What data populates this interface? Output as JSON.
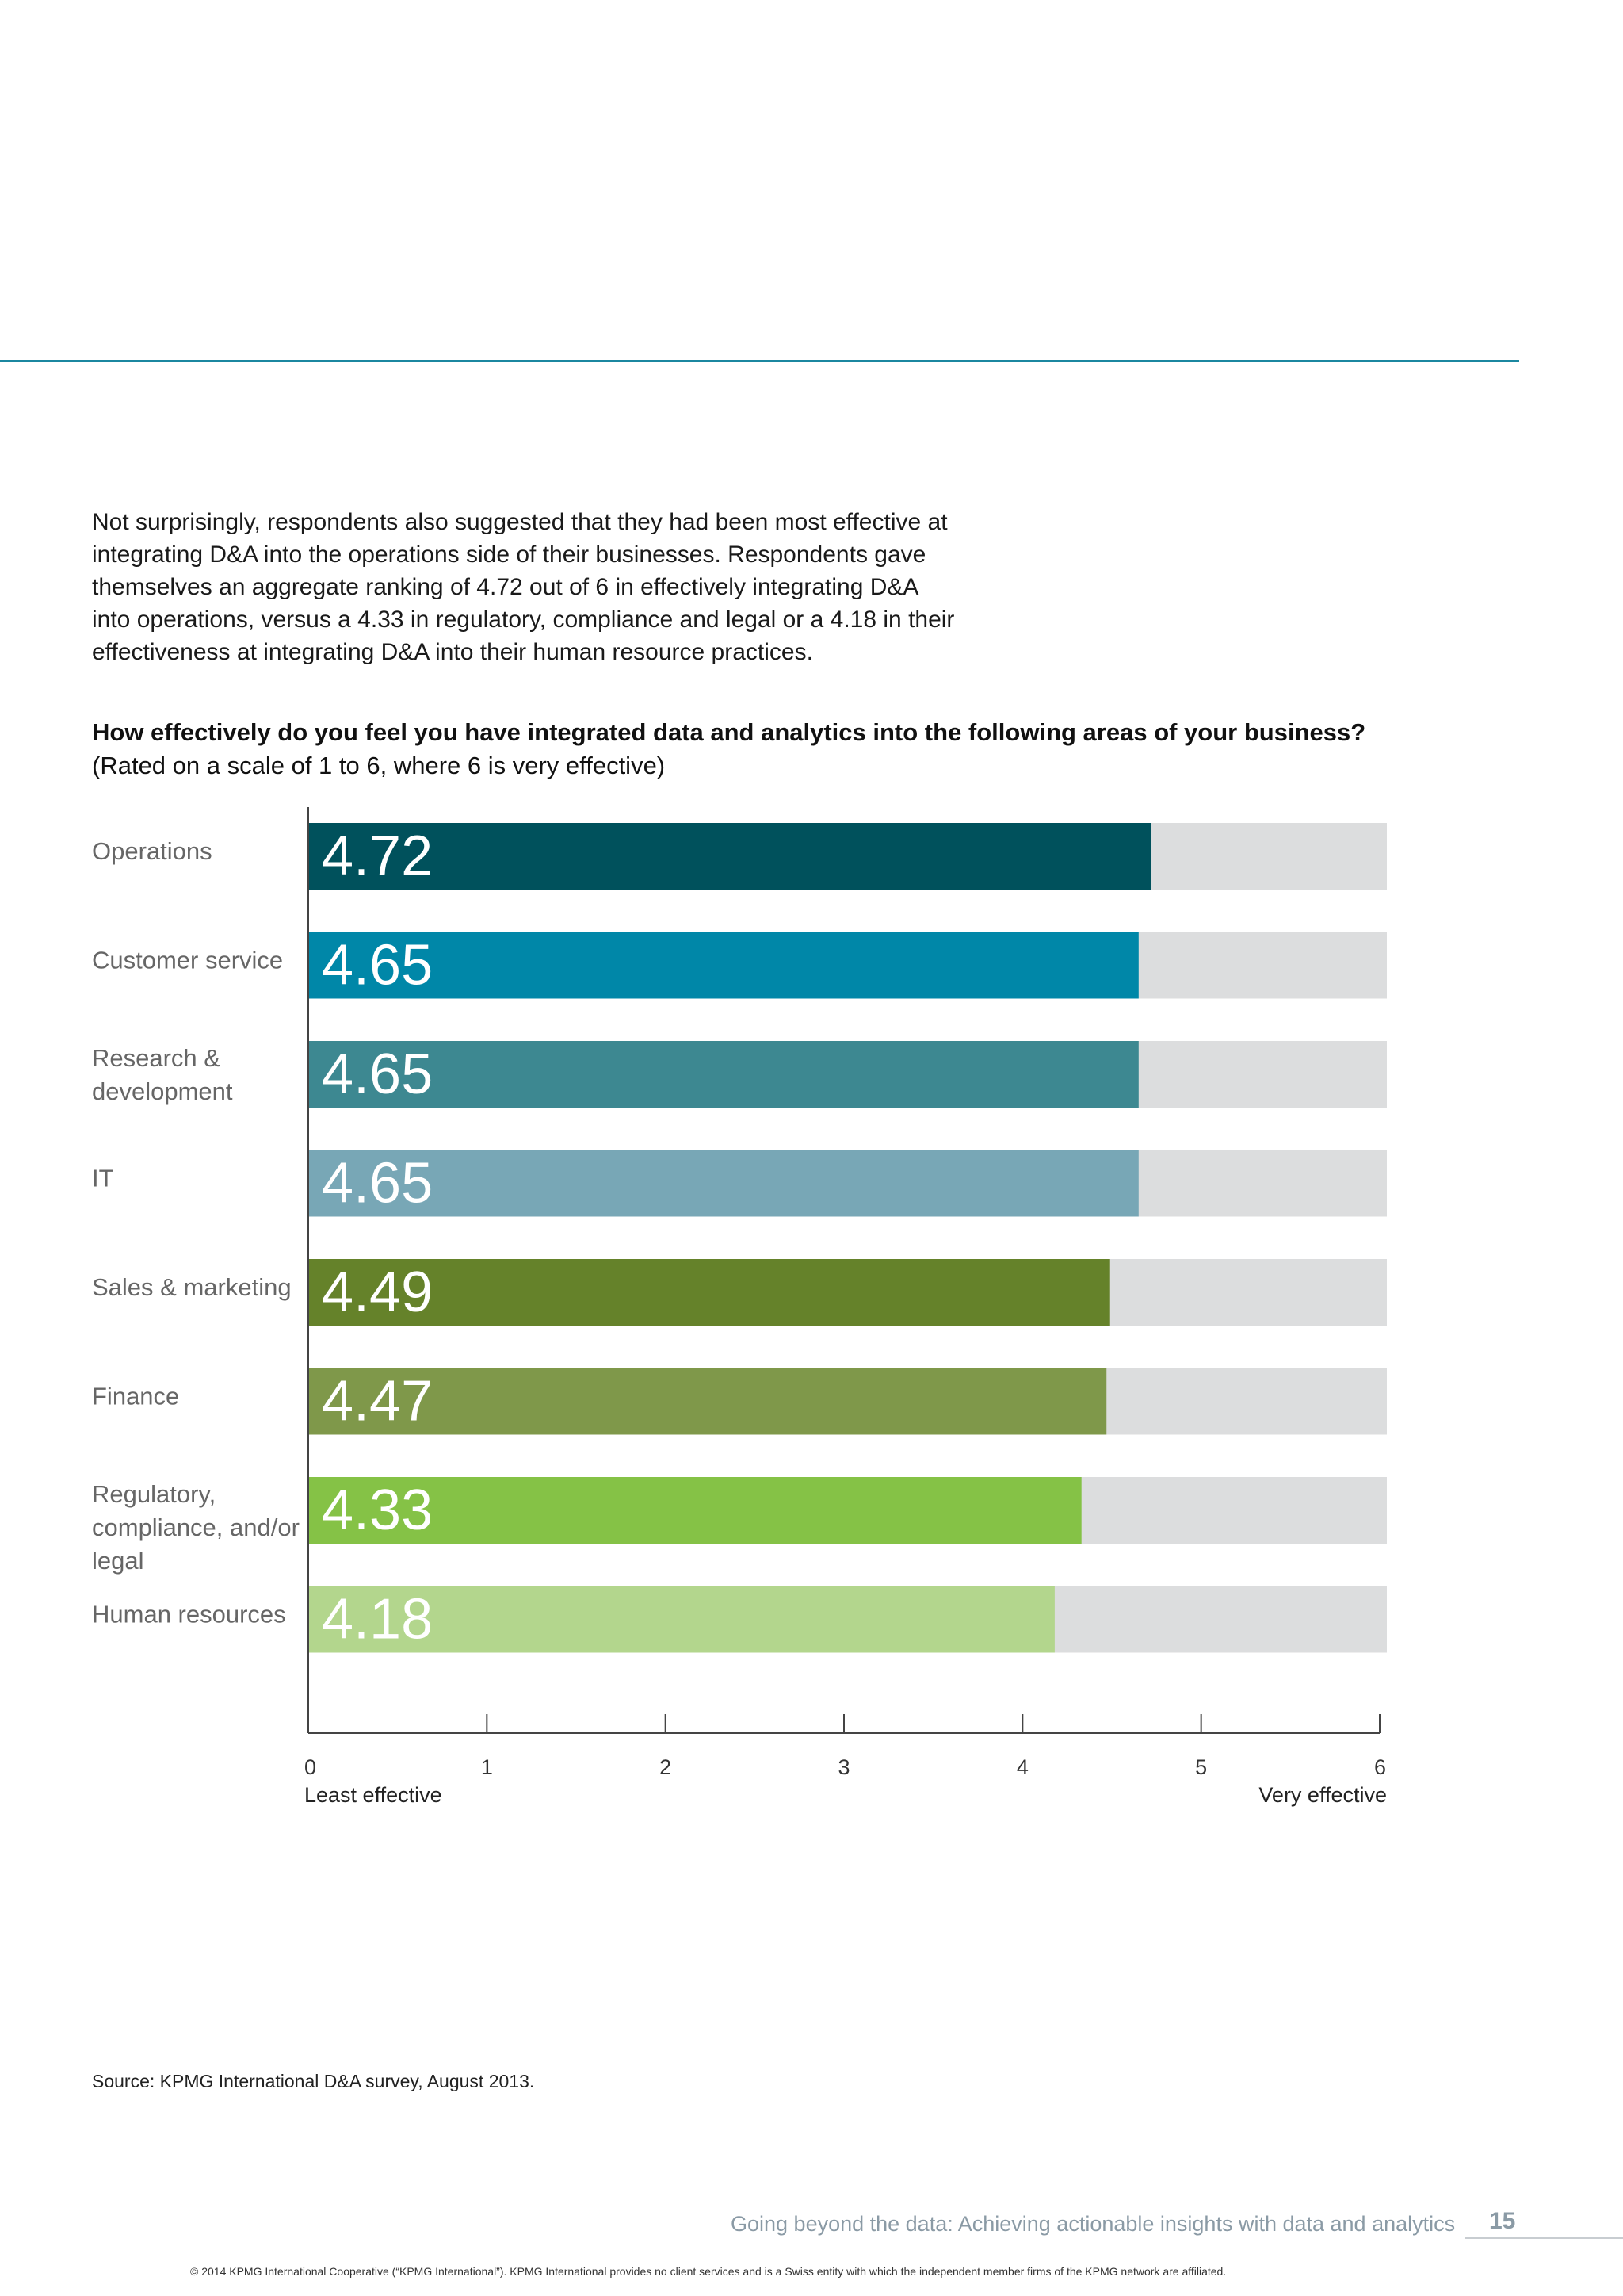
{
  "intro": {
    "lines": [
      "Not surprisingly, respondents also suggested that they had been most effective at",
      "integrating D&A into the operations side of their businesses. Respondents gave",
      "themselves an aggregate ranking of 4.72 out of 6 in effectively integrating D&A",
      "into operations, versus a 4.33 in regulatory, compliance and legal or a 4.18 in their",
      "effectiveness at integrating D&A into their human resource practices."
    ]
  },
  "chart_data": {
    "type": "bar",
    "orientation": "horizontal",
    "title": "How effectively do you feel you have integrated data and analytics into the following areas of your business?",
    "subtitle": "(Rated on a scale of 1 to 6, where 6 is very effective)",
    "categories": [
      [
        "Operations"
      ],
      [
        "Customer service"
      ],
      [
        "Research &",
        "development"
      ],
      [
        "IT"
      ],
      [
        "Sales & marketing"
      ],
      [
        "Finance"
      ],
      [
        "Regulatory,",
        "compliance, and/or",
        "legal"
      ],
      [
        "Human resources"
      ]
    ],
    "values": [
      4.72,
      4.65,
      4.65,
      4.65,
      4.49,
      4.47,
      4.33,
      4.18
    ],
    "value_labels": [
      "4.72",
      "4.65",
      "4.65",
      "4.65",
      "4.49",
      "4.47",
      "4.33",
      "4.18"
    ],
    "colors": [
      "#00515c",
      "#0087a8",
      "#3d8891",
      "#78a7b6",
      "#65822a",
      "#7f984a",
      "#85c246",
      "#b3d68d"
    ],
    "background_color": "#dcddde",
    "xlim": [
      0,
      6
    ],
    "xticks": [
      "0",
      "1",
      "2",
      "3",
      "4",
      "5",
      "6"
    ],
    "axis_left_label": "Least effective",
    "axis_right_label": "Very effective",
    "grid": false
  },
  "source": "Source: KPMG International D&A survey, August 2013.",
  "footer": {
    "title": "Going beyond the data: Achieving actionable insights with data and analytics",
    "page_number": "15",
    "copyright": "© 2014 KPMG International Cooperative (“KPMG International”). KPMG International provides no client services and is a Swiss entity with which the independent member firms of the KPMG network are affiliated."
  }
}
